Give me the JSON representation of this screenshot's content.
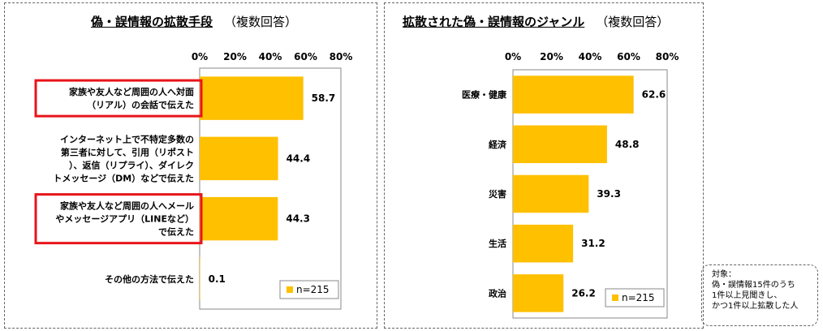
{
  "left": {
    "title": "偽・誤情報の拡散手段",
    "subtitle": "（複数回答）",
    "n_label": "n=215",
    "chart_data": {
      "type": "bar",
      "orientation": "horizontal",
      "title": "偽・誤情報の拡散手段（複数回答）",
      "xlim": [
        0,
        80
      ],
      "ticks": [
        "0%",
        "20%",
        "40%",
        "60%",
        "80%"
      ],
      "categories": [
        [
          "家族や友人など周囲の人へ対面",
          "（リアル）の会話で伝えた"
        ],
        [
          "インターネット上で不特定多数の",
          "第三者に対して、引用（リポスト",
          "）、返信（リプライ）、ダイレク",
          "トメッセージ（DM）などで伝えた"
        ],
        [
          "家族や友人など周囲の人へメール",
          "やメッセージアプリ（LINEなど）",
          "で伝えた"
        ],
        [
          "その他の方法で伝えた"
        ]
      ],
      "values": [
        58.7,
        44.4,
        44.3,
        0.1
      ],
      "value_labels": [
        "58.7",
        "44.4",
        "44.3",
        "0.1"
      ],
      "highlighted": [
        true,
        false,
        true,
        false
      ],
      "legend": "n=215",
      "colors": {
        "bar": "#FFC000",
        "highlight": "#E8141A"
      }
    }
  },
  "right": {
    "title": "拡散された偽・誤情報のジャンル",
    "subtitle": "（複数回答）",
    "n_label": "n=215",
    "chart_data": {
      "type": "bar",
      "orientation": "horizontal",
      "title": "拡散された偽・誤情報のジャンル（複数回答）",
      "xlim": [
        0,
        80
      ],
      "ticks": [
        "0%",
        "20%",
        "40%",
        "60%",
        "80%"
      ],
      "categories": [
        "医療・健康",
        "経済",
        "災害",
        "生活",
        "政治"
      ],
      "values": [
        62.6,
        48.8,
        39.3,
        31.2,
        26.2
      ],
      "value_labels": [
        "62.6",
        "48.8",
        "39.3",
        "31.2",
        "26.2"
      ],
      "legend": "n=215",
      "colors": {
        "bar": "#FFC000"
      }
    }
  },
  "note": {
    "line1": "対象：",
    "line2": "偽・誤情報15件のうち",
    "line3": "1件以上見聞きし、",
    "line4": "かつ1件以上拡散した人"
  }
}
